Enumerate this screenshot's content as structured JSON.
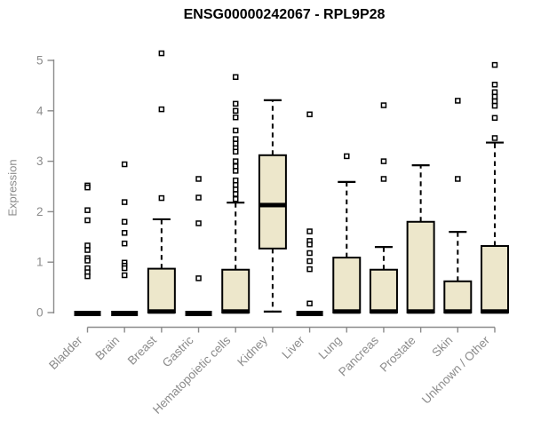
{
  "title": "ENSG00000242067 - RPL9P28",
  "y_axis": {
    "label": "Expression"
  },
  "colors": {
    "box_fill": "#EDE7CB",
    "box_border": "#000000",
    "median": "#000000",
    "axis": "#8B8B8B",
    "tick_label": "#8B8B8B",
    "title": "#000000",
    "outlier_fill": "#FFFFFF"
  },
  "chart_data": {
    "type": "boxplot",
    "title": "ENSG00000242067 - RPL9P28",
    "xlabel": "",
    "ylabel": "Expression",
    "ylim": [
      0,
      5
    ],
    "yticks": [
      0,
      1,
      2,
      3,
      4,
      5
    ],
    "grid": false,
    "legend": false,
    "categories": [
      "Bladder",
      "Brain",
      "Breast",
      "Gastric",
      "Hematopoietic cells",
      "Kidney",
      "Liver",
      "Lung",
      "Pancreas",
      "Prostate",
      "Skin",
      "Unknown / Other"
    ],
    "boxes": [
      {
        "category": "Bladder",
        "flat": true,
        "low": 0,
        "q1": 0,
        "median": 0.02,
        "q3": 0.05,
        "high": 0.05,
        "outliers": [
          2.52,
          2.48,
          2.03,
          1.83,
          1.33,
          1.24,
          1.08,
          1.03,
          0.88,
          0.8,
          0.72
        ]
      },
      {
        "category": "Brain",
        "flat": true,
        "low": 0,
        "q1": 0,
        "median": 0.02,
        "q3": 0.05,
        "high": 0.05,
        "outliers": [
          2.94,
          2.19,
          1.8,
          1.58,
          1.37,
          0.99,
          0.93,
          0.88,
          0.74
        ]
      },
      {
        "category": "Breast",
        "flat": false,
        "low": 0,
        "q1": 0,
        "median": 0.03,
        "q3": 0.87,
        "high": 1.85,
        "outliers": [
          5.14,
          4.03,
          2.27
        ]
      },
      {
        "category": "Gastric",
        "flat": true,
        "low": 0,
        "q1": 0,
        "median": 0.02,
        "q3": 0.05,
        "high": 0.05,
        "outliers": [
          2.65,
          2.28,
          1.77,
          0.68
        ]
      },
      {
        "category": "Hematopoietic cells",
        "flat": false,
        "low": 0,
        "q1": 0,
        "median": 0.03,
        "q3": 0.85,
        "high": 2.18,
        "outliers": [
          4.67,
          4.14,
          4.0,
          3.87,
          3.61,
          3.44,
          3.35,
          3.26,
          3.19,
          3.0,
          2.9,
          2.81,
          2.62,
          2.53,
          2.44,
          2.35,
          2.25
        ]
      },
      {
        "category": "Kidney",
        "flat": false,
        "low": 0.02,
        "q1": 1.27,
        "median": 2.14,
        "q3": 3.12,
        "high": 4.21,
        "outliers": []
      },
      {
        "category": "Liver",
        "flat": true,
        "low": 0,
        "q1": 0,
        "median": 0.02,
        "q3": 0.05,
        "high": 0.05,
        "outliers": [
          3.93,
          1.61,
          1.42,
          1.35,
          1.18,
          1.02,
          0.86,
          0.18
        ]
      },
      {
        "category": "Lung",
        "flat": false,
        "low": 0,
        "q1": 0,
        "median": 0.03,
        "q3": 1.09,
        "high": 2.59,
        "outliers": [
          3.1
        ]
      },
      {
        "category": "Pancreas",
        "flat": false,
        "low": 0,
        "q1": 0,
        "median": 0.03,
        "q3": 0.85,
        "high": 1.3,
        "outliers": [
          4.11,
          3.0,
          2.65
        ]
      },
      {
        "category": "Prostate",
        "flat": false,
        "low": 0,
        "q1": 0,
        "median": 0.03,
        "q3": 1.8,
        "high": 2.92,
        "outliers": []
      },
      {
        "category": "Skin",
        "flat": false,
        "low": 0,
        "q1": 0,
        "median": 0.03,
        "q3": 0.62,
        "high": 1.6,
        "outliers": [
          4.2,
          2.65
        ]
      },
      {
        "category": "Unknown / Other",
        "flat": false,
        "low": 0,
        "q1": 0,
        "median": 0.03,
        "q3": 1.32,
        "high": 3.37,
        "outliers": [
          4.91,
          4.52,
          4.37,
          4.28,
          4.19,
          4.1,
          3.86,
          3.46
        ]
      }
    ]
  }
}
